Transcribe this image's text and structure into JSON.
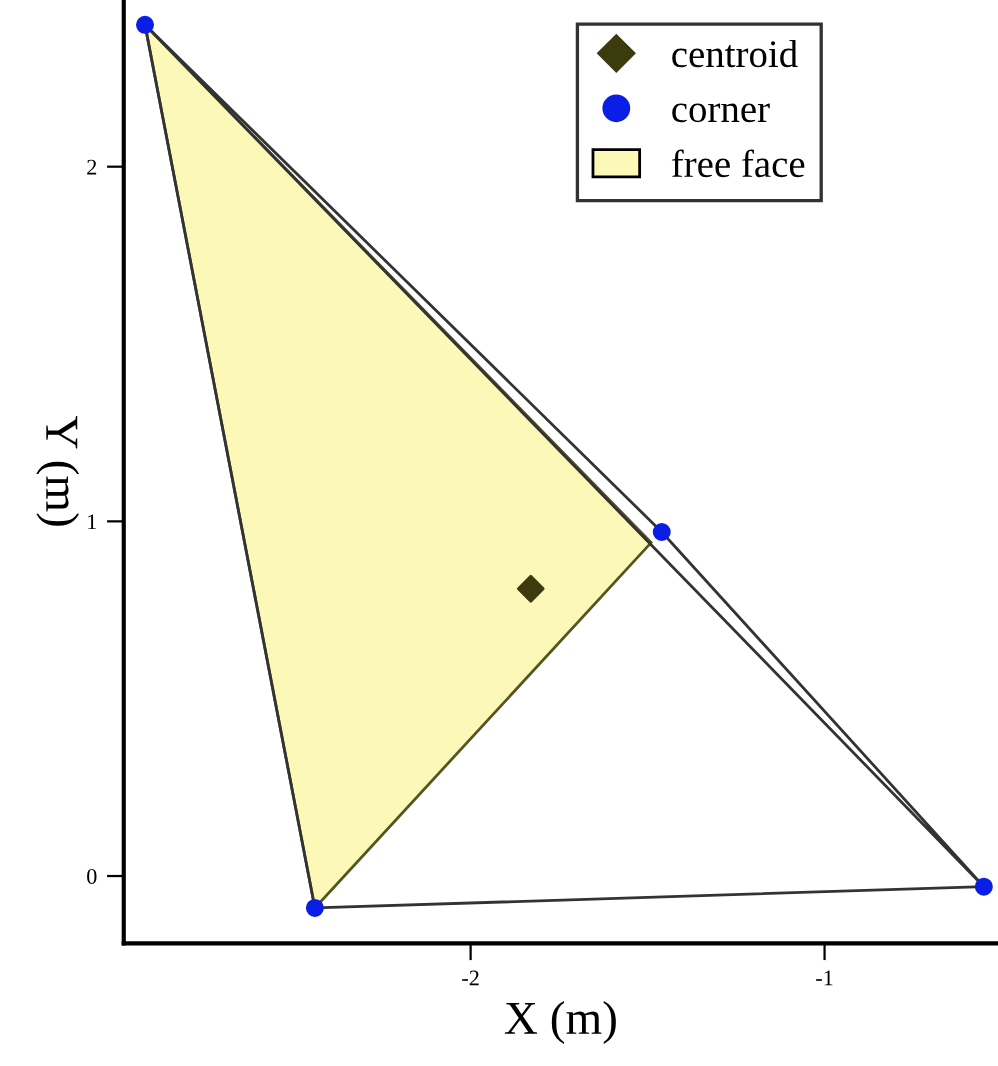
{
  "chart_data": {
    "type": "scatter",
    "xlabel": "X (m)",
    "ylabel": "Y (m)",
    "xlim": [
      -2.98,
      -0.51
    ],
    "ylim": [
      -0.19,
      2.47
    ],
    "xticks": [
      -2,
      -1
    ],
    "yticks": [
      0,
      1,
      2
    ],
    "grid": false,
    "legend": "top right",
    "series": [
      {
        "name": "centroid",
        "color": "#3b3b0e",
        "marker": "diamond",
        "x": [
          -1.83
        ],
        "values": [
          0.81
        ]
      },
      {
        "name": "corner",
        "color": "#0a1ee6",
        "marker": "circle",
        "x": [
          -2.92,
          -2.44,
          -1.46,
          -0.55
        ],
        "values": [
          2.4,
          -0.09,
          0.97,
          -0.03
        ]
      },
      {
        "name": "free face",
        "type": "area",
        "color": "#fcf9b8",
        "x": [
          -2.92,
          -1.49,
          -2.44,
          -2.92
        ],
        "values": [
          2.4,
          0.94,
          -0.09,
          2.4
        ]
      },
      {
        "type": "line",
        "color": "#333333",
        "marker": "none",
        "x": [
          -2.92,
          -2.44,
          -0.55,
          -2.92,
          -1.46,
          -0.55
        ],
        "values": [
          2.4,
          -0.09,
          -0.03,
          2.4,
          0.97,
          -0.03
        ]
      }
    ]
  }
}
